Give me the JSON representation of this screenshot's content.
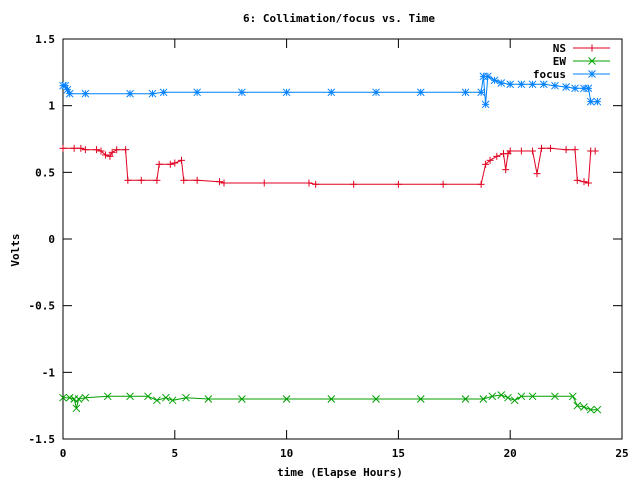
{
  "chart_data": {
    "type": "line",
    "title": "6: Collimation/focus vs. Time",
    "xlabel": "time (Elapse Hours)",
    "ylabel": "Volts",
    "xlim": [
      0,
      25
    ],
    "ylim": [
      -1.5,
      1.5
    ],
    "x_ticks": [
      0,
      5,
      10,
      15,
      20,
      25
    ],
    "x_tick_labels": [
      "0",
      "5",
      "10",
      "15",
      "20",
      "25"
    ],
    "y_ticks": [
      -1.5,
      -1,
      -0.5,
      0,
      0.5,
      1,
      1.5
    ],
    "y_tick_labels": [
      "-1.5",
      "-1",
      "-0.5",
      "0",
      "0.5",
      "1",
      "1.5"
    ],
    "grid": false,
    "legend_position": "top-right",
    "series": [
      {
        "name": "NS",
        "color": "#e0001f",
        "marker": "plus",
        "points": [
          [
            0,
            0.68
          ],
          [
            0.5,
            0.68
          ],
          [
            0.8,
            0.68
          ],
          [
            1.0,
            0.67
          ],
          [
            1.5,
            0.67
          ],
          [
            1.7,
            0.66
          ],
          [
            1.9,
            0.63
          ],
          [
            2.1,
            0.62
          ],
          [
            2.2,
            0.65
          ],
          [
            2.4,
            0.67
          ],
          [
            2.8,
            0.67
          ],
          [
            2.9,
            0.44
          ],
          [
            3.5,
            0.44
          ],
          [
            4.2,
            0.44
          ],
          [
            4.3,
            0.56
          ],
          [
            4.8,
            0.56
          ],
          [
            5.0,
            0.57
          ],
          [
            5.3,
            0.59
          ],
          [
            5.4,
            0.44
          ],
          [
            6.0,
            0.44
          ],
          [
            7.0,
            0.43
          ],
          [
            7.2,
            0.42
          ],
          [
            9.0,
            0.42
          ],
          [
            11.0,
            0.42
          ],
          [
            11.3,
            0.41
          ],
          [
            13.0,
            0.41
          ],
          [
            15.0,
            0.41
          ],
          [
            17.0,
            0.41
          ],
          [
            18.7,
            0.41
          ],
          [
            18.9,
            0.56
          ],
          [
            19.1,
            0.59
          ],
          [
            19.4,
            0.62
          ],
          [
            19.7,
            0.64
          ],
          [
            19.8,
            0.52
          ],
          [
            19.9,
            0.64
          ],
          [
            20.0,
            0.66
          ],
          [
            20.5,
            0.66
          ],
          [
            21.0,
            0.66
          ],
          [
            21.2,
            0.49
          ],
          [
            21.4,
            0.68
          ],
          [
            21.8,
            0.68
          ],
          [
            22.5,
            0.67
          ],
          [
            22.9,
            0.67
          ],
          [
            23.0,
            0.44
          ],
          [
            23.3,
            0.43
          ],
          [
            23.5,
            0.42
          ],
          [
            23.6,
            0.66
          ],
          [
            23.8,
            0.66
          ]
        ]
      },
      {
        "name": "EW",
        "color": "#00a000",
        "marker": "x",
        "points": [
          [
            0,
            -1.19
          ],
          [
            0.3,
            -1.19
          ],
          [
            0.5,
            -1.2
          ],
          [
            0.6,
            -1.27
          ],
          [
            0.7,
            -1.2
          ],
          [
            1.0,
            -1.19
          ],
          [
            2.0,
            -1.18
          ],
          [
            3.0,
            -1.18
          ],
          [
            3.8,
            -1.18
          ],
          [
            4.2,
            -1.21
          ],
          [
            4.6,
            -1.19
          ],
          [
            4.9,
            -1.21
          ],
          [
            5.5,
            -1.19
          ],
          [
            6.5,
            -1.2
          ],
          [
            8.0,
            -1.2
          ],
          [
            10.0,
            -1.2
          ],
          [
            12.0,
            -1.2
          ],
          [
            14.0,
            -1.2
          ],
          [
            16.0,
            -1.2
          ],
          [
            18.0,
            -1.2
          ],
          [
            18.8,
            -1.2
          ],
          [
            19.2,
            -1.18
          ],
          [
            19.6,
            -1.17
          ],
          [
            19.9,
            -1.19
          ],
          [
            20.2,
            -1.21
          ],
          [
            20.5,
            -1.18
          ],
          [
            21.0,
            -1.18
          ],
          [
            22.0,
            -1.18
          ],
          [
            22.8,
            -1.18
          ],
          [
            23.0,
            -1.25
          ],
          [
            23.3,
            -1.26
          ],
          [
            23.6,
            -1.28
          ],
          [
            23.9,
            -1.28
          ]
        ]
      },
      {
        "name": "focus",
        "color": "#0080ff",
        "marker": "star",
        "points": [
          [
            0,
            1.15
          ],
          [
            0.1,
            1.15
          ],
          [
            0.2,
            1.12
          ],
          [
            0.3,
            1.09
          ],
          [
            1.0,
            1.09
          ],
          [
            3.0,
            1.09
          ],
          [
            4.0,
            1.09
          ],
          [
            4.5,
            1.1
          ],
          [
            6.0,
            1.1
          ],
          [
            8.0,
            1.1
          ],
          [
            10.0,
            1.1
          ],
          [
            12.0,
            1.1
          ],
          [
            14.0,
            1.1
          ],
          [
            16.0,
            1.1
          ],
          [
            18.0,
            1.1
          ],
          [
            18.7,
            1.1
          ],
          [
            18.8,
            1.22
          ],
          [
            18.9,
            1.01
          ],
          [
            19.0,
            1.22
          ],
          [
            19.3,
            1.19
          ],
          [
            19.6,
            1.17
          ],
          [
            20.0,
            1.16
          ],
          [
            20.5,
            1.16
          ],
          [
            21.0,
            1.16
          ],
          [
            21.5,
            1.16
          ],
          [
            22.0,
            1.15
          ],
          [
            22.5,
            1.14
          ],
          [
            22.9,
            1.13
          ],
          [
            23.3,
            1.13
          ],
          [
            23.5,
            1.13
          ],
          [
            23.6,
            1.03
          ],
          [
            23.9,
            1.03
          ]
        ]
      }
    ]
  }
}
